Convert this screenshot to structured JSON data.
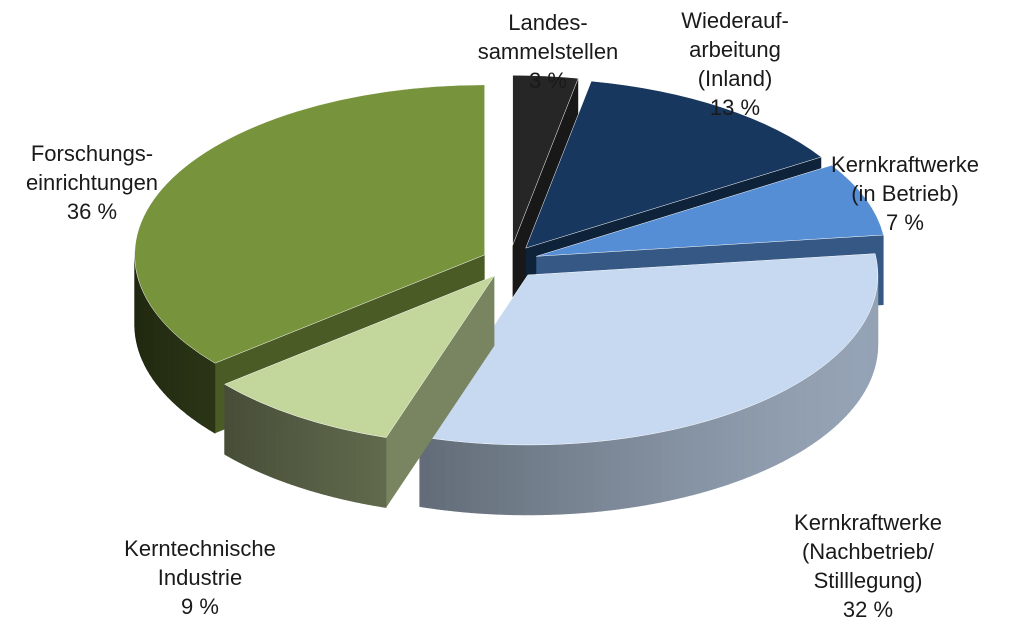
{
  "chart_data": {
    "type": "pie3d",
    "categories": [
      [
        "Landes-",
        "sammelstellen"
      ],
      [
        "Wiederauf-",
        "arbeitung",
        "(Inland)"
      ],
      [
        "Kernkraftwerke",
        "(in Betrieb)"
      ],
      [
        "Kernkraftwerke",
        "(Nachbetrieb/",
        "Stilllegung)"
      ],
      [
        "Kerntechnische",
        "Industrie"
      ],
      [
        "Forschungs-",
        "einrichtungen"
      ]
    ],
    "values": [
      3,
      13,
      7,
      32,
      9,
      36
    ],
    "value_labels": [
      "3 %",
      "13 %",
      "7 %",
      "32 %",
      "9 %",
      "36 %"
    ],
    "colors": [
      "#262626",
      "#17375e",
      "#558ed5",
      "#c6d9f1",
      "#c3d69b",
      "#77933c"
    ]
  }
}
